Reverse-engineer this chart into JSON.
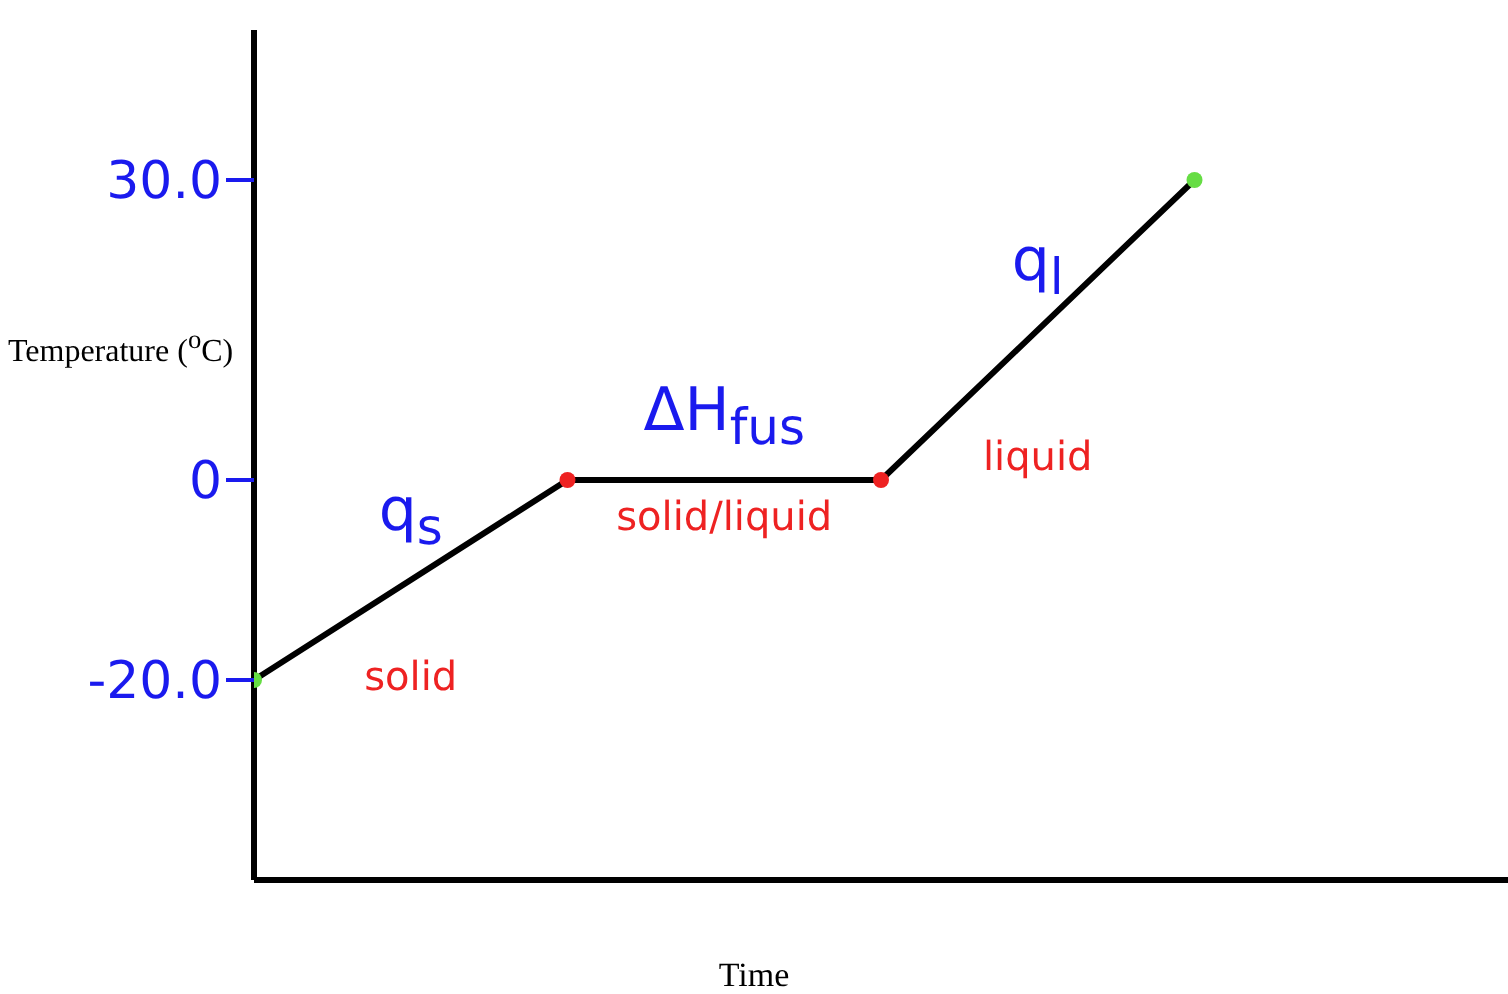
{
  "chart_data": {
    "type": "line",
    "xlabel": "Time",
    "ylabel": "Temperature ($^{o}$C)",
    "categories": [
      null,
      null,
      null,
      null
    ],
    "series": [
      {
        "color": "#000000",
        "values": [
          -20,
          0,
          0,
          30
        ],
        "colors": [
          "#66dd44",
          "#ee2222",
          "#ee2222",
          "#66dd44"
        ]
      }
    ],
    "ylim": [
      -40,
      45
    ],
    "yticks": [
      {
        "value": -20,
        "label": "-20.0"
      },
      0,
      {
        "value": 30,
        "label": "30.0"
      }
    ],
    "marker": "circle",
    "annotations": [
      "q$_{s}$",
      "solid",
      "ΔH$_{fus}$",
      "solid/liquid",
      "q$_{l}$",
      "liquid"
    ]
  }
}
